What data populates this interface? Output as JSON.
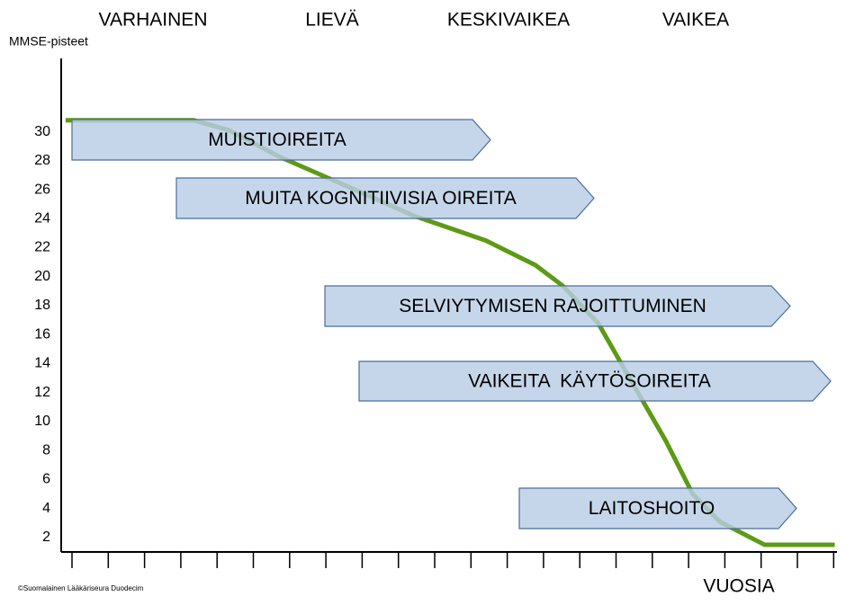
{
  "chart_data": {
    "type": "line",
    "y_label": "MMSE-pisteet",
    "x_label": "VUOSIA",
    "stages": [
      "VARHAINEN",
      "LIEVÄ",
      "KESKIVAIKEA",
      "VAIKEA"
    ],
    "bands": [
      "MUISTIOIREITA",
      "MUITA KOGNITIIVISIA OIREITA",
      "SELVIYTYMISEN RAJOITTUMINEN",
      "VAIKEITA  KÄYTÖSOIREITA",
      "LAITOSHOITO"
    ],
    "x": [
      0.12,
      3.65,
      4.64,
      6.0,
      7.74,
      9.73,
      11.71,
      13.08,
      13.82,
      14.81,
      15.68,
      16.67,
      17.42,
      18.16,
      19.4,
      21.34
    ],
    "series": [
      {
        "color": "#5e9a16",
        "values": [
          30.8,
          30.8,
          30.1,
          28.3,
          26.4,
          24.2,
          22.5,
          20.8,
          19.4,
          16.8,
          13.0,
          8.7,
          5.0,
          3.1,
          1.5,
          1.5
        ]
      }
    ],
    "xlim": [
      0,
      21.4
    ],
    "ylim": [
      1,
      35
    ],
    "yticks": [
      2,
      4,
      6,
      8,
      10,
      12,
      14,
      16,
      18,
      20,
      22,
      24,
      26,
      28,
      30
    ],
    "copyright": "©Suomalainen Lääkäriseura Duodecim"
  }
}
